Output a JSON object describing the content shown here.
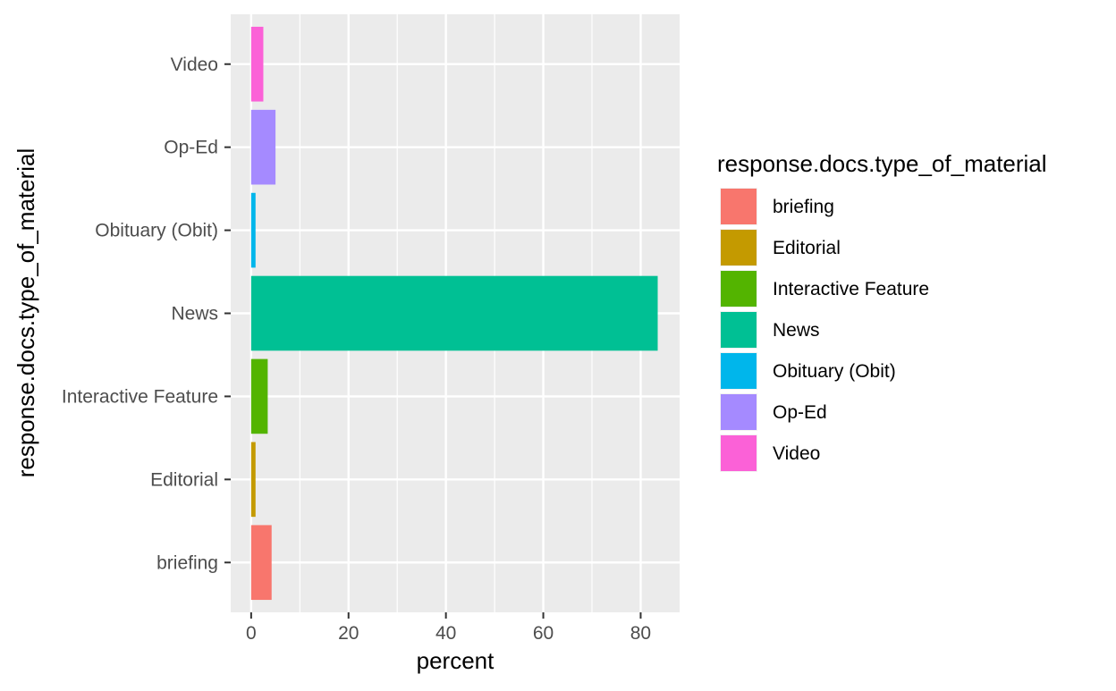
{
  "chart_data": {
    "type": "bar",
    "orientation": "horizontal",
    "categories": [
      "briefing",
      "Editorial",
      "Interactive Feature",
      "News",
      "Obituary (Obit)",
      "Op-Ed",
      "Video"
    ],
    "values": [
      4.2,
      0.9,
      3.4,
      83.5,
      0.9,
      5.0,
      2.5
    ],
    "colors": [
      "#F8766D",
      "#C49A00",
      "#53B400",
      "#00C094",
      "#00B6EB",
      "#A58AFF",
      "#FB61D7"
    ],
    "xlabel": "percent",
    "ylabel": "response.docs.type_of_material",
    "xlim": [
      -4.2,
      88
    ],
    "x_ticks": [
      0,
      20,
      40,
      60,
      80
    ],
    "x_tick_labels": [
      "0",
      "20",
      "40",
      "60",
      "80"
    ],
    "grid": true,
    "legend": {
      "title": "response.docs.type_of_material",
      "position": "right"
    }
  }
}
